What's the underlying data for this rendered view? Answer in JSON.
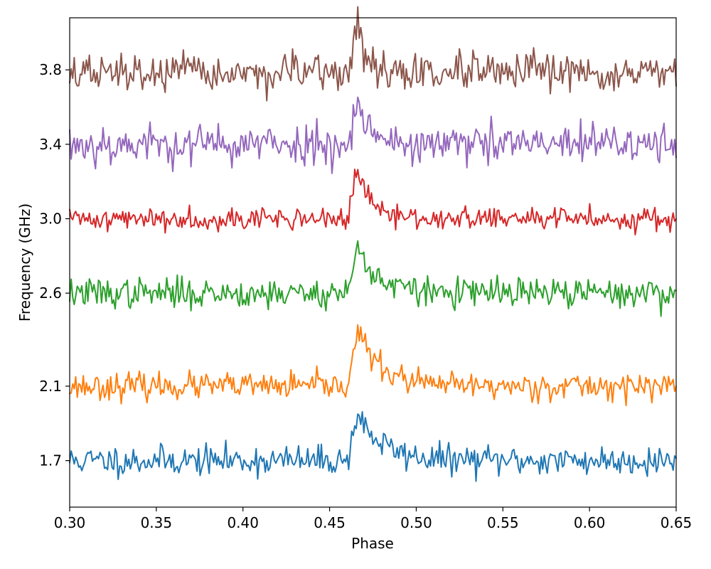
{
  "chart_data": {
    "type": "line",
    "title": "",
    "xlabel": "Phase",
    "ylabel": "Frequency (GHz)",
    "xlim": [
      0.3,
      0.65
    ],
    "ylim": [
      1.45,
      4.08
    ],
    "grid": false,
    "legend": "none",
    "x_ticks": [
      0.3,
      0.35,
      0.4,
      0.45,
      0.5,
      0.55,
      0.6,
      0.65
    ],
    "x_tick_labels": [
      "0.30",
      "0.35",
      "0.40",
      "0.45",
      "0.50",
      "0.55",
      "0.60",
      "0.65"
    ],
    "y_ticks": [
      1.7,
      2.1,
      2.6,
      3.0,
      3.4,
      3.8
    ],
    "y_tick_labels": [
      "1.7",
      "2.1",
      "2.6",
      "3.0",
      "3.4",
      "3.8"
    ],
    "pulse": {
      "onset": 0.46,
      "peak": 0.466,
      "end": 0.485
    },
    "series": [
      {
        "offset": 1.7,
        "color": "#1f77b4",
        "noise": 0.04,
        "pulse_height": 0.25,
        "pulse_width": 0.006,
        "tail": 0.014,
        "seed": 11
      },
      {
        "offset": 2.1,
        "color": "#ff7f0e",
        "noise": 0.035,
        "pulse_height": 0.3,
        "pulse_width": 0.005,
        "tail": 0.013,
        "seed": 23
      },
      {
        "offset": 2.6,
        "color": "#2ca02c",
        "noise": 0.04,
        "pulse_height": 0.24,
        "pulse_width": 0.005,
        "tail": 0.012,
        "seed": 37
      },
      {
        "offset": 3.0,
        "color": "#d62728",
        "noise": 0.03,
        "pulse_height": 0.25,
        "pulse_width": 0.004,
        "tail": 0.008,
        "seed": 41
      },
      {
        "offset": 3.4,
        "color": "#9467bd",
        "noise": 0.055,
        "pulse_height": 0.24,
        "pulse_width": 0.003,
        "tail": 0.007,
        "seed": 53
      },
      {
        "offset": 3.78,
        "color": "#8c564b",
        "noise": 0.05,
        "pulse_height": 0.25,
        "pulse_width": 0.003,
        "tail": 0.005,
        "seed": 67
      }
    ]
  }
}
